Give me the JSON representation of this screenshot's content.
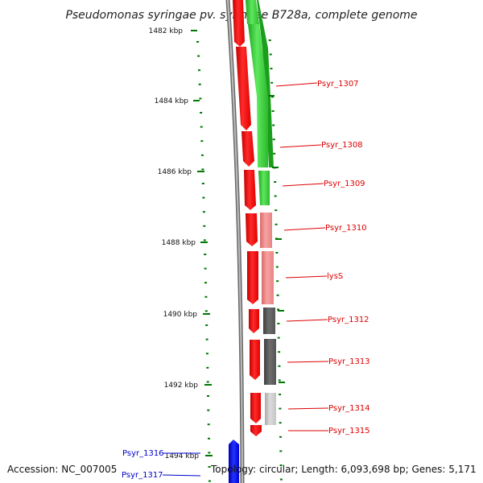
{
  "title": "Pseudomonas syringae pv. syringae B728a, complete genome",
  "footer": {
    "accession": "Accession: NC_007005",
    "summary": "Topology: circular; Length: 6,093,698 bp; Genes: 5,171"
  },
  "colors": {
    "forward_strand": "#ff0000",
    "reverse_label": "#0000cc",
    "scale_ticks": "#007700",
    "backbone": "#888888",
    "forward_gene_label": "#dd0000"
  },
  "scale_labels": [
    "1482 kbp",
    "1484 kbp",
    "1486 kbp",
    "1488 kbp",
    "1490 kbp",
    "1492 kbp",
    "1494 kbp"
  ],
  "gene_labels": [
    {
      "name": "Psyr_1307",
      "strand": "forward"
    },
    {
      "name": "Psyr_1308",
      "strand": "forward"
    },
    {
      "name": "Psyr_1309",
      "strand": "forward"
    },
    {
      "name": "Psyr_1310",
      "strand": "forward"
    },
    {
      "name": "lysS",
      "strand": "forward"
    },
    {
      "name": "Psyr_1312",
      "strand": "forward"
    },
    {
      "name": "Psyr_1313",
      "strand": "forward"
    },
    {
      "name": "Psyr_1314",
      "strand": "forward"
    },
    {
      "name": "Psyr_1315",
      "strand": "forward"
    },
    {
      "name": "Psyr_1316",
      "strand": "reverse"
    },
    {
      "name": "Psyr_1317",
      "strand": "reverse"
    }
  ]
}
